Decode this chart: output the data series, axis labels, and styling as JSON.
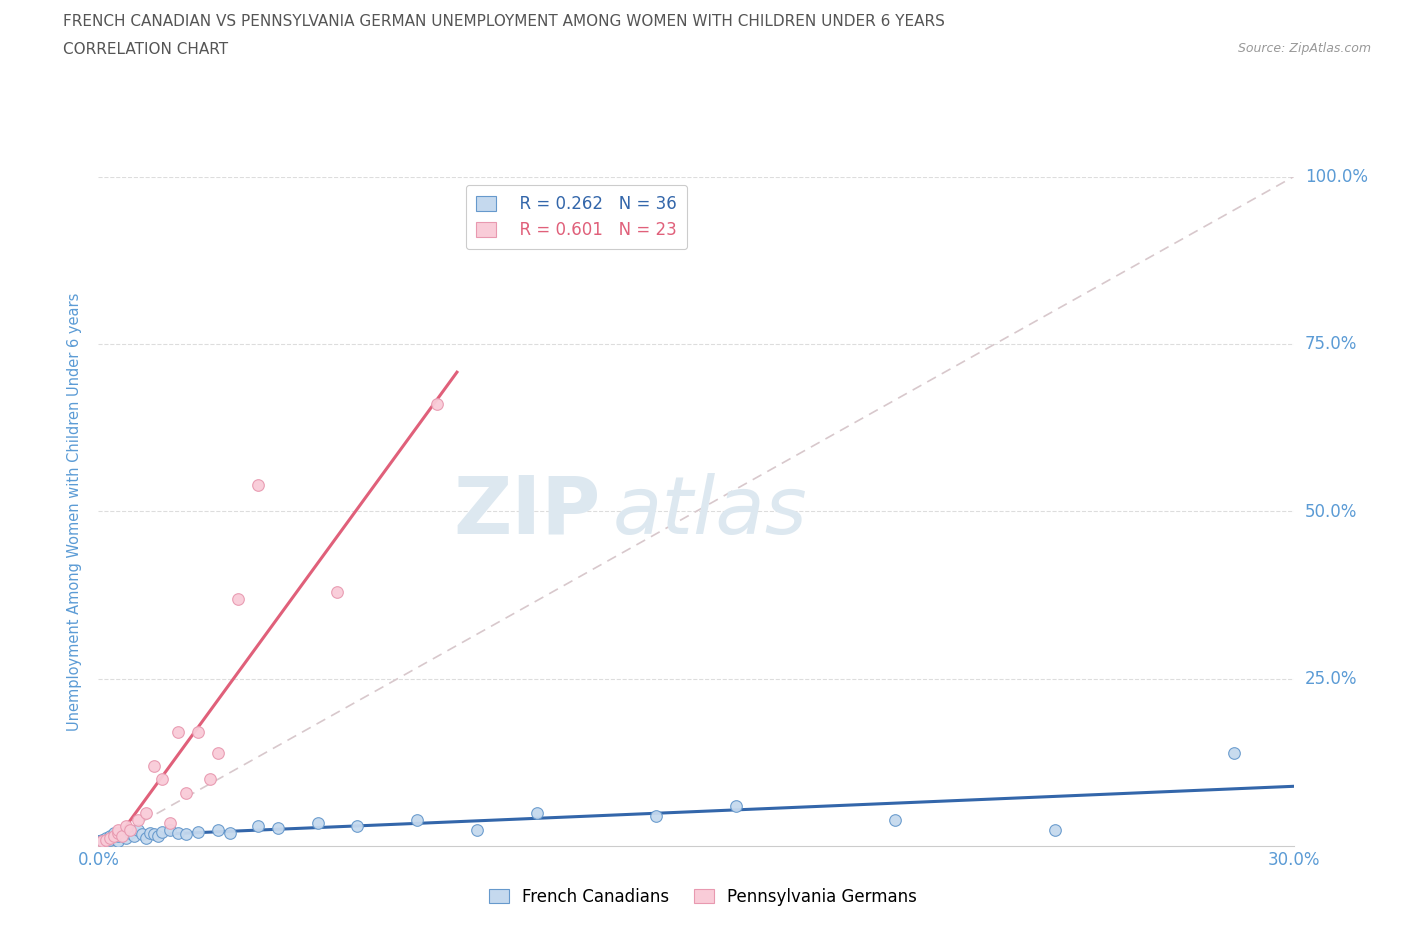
{
  "title": "FRENCH CANADIAN VS PENNSYLVANIA GERMAN UNEMPLOYMENT AMONG WOMEN WITH CHILDREN UNDER 6 YEARS",
  "subtitle": "CORRELATION CHART",
  "source": "Source: ZipAtlas.com",
  "ylabel_left": "Unemployment Among Women with Children Under 6 years",
  "legend_blue_r": "R = 0.262",
  "legend_blue_n": "N = 36",
  "legend_pink_r": "R = 0.601",
  "legend_pink_n": "N = 23",
  "legend_label_blue": "French Canadians",
  "legend_label_pink": "Pennsylvania Germans",
  "blue_scatter_color": "#c5d9ee",
  "blue_edge_color": "#6699cc",
  "blue_line_color": "#3366aa",
  "pink_scatter_color": "#f9ccd8",
  "pink_edge_color": "#e899b0",
  "pink_line_color": "#e0607a",
  "ref_line_color": "#d8c8cc",
  "grid_color": "#dddddd",
  "title_color": "#555555",
  "tick_color": "#5b9bd5",
  "watermark_color": "#dde8f0",
  "french_canadians_x": [
    0.001,
    0.002,
    0.003,
    0.003,
    0.004,
    0.005,
    0.005,
    0.006,
    0.007,
    0.008,
    0.009,
    0.01,
    0.011,
    0.012,
    0.013,
    0.014,
    0.015,
    0.016,
    0.018,
    0.02,
    0.022,
    0.025,
    0.03,
    0.033,
    0.04,
    0.045,
    0.055,
    0.065,
    0.08,
    0.095,
    0.11,
    0.14,
    0.16,
    0.2,
    0.24,
    0.285
  ],
  "french_canadians_y": [
    0.01,
    0.012,
    0.01,
    0.015,
    0.02,
    0.008,
    0.015,
    0.018,
    0.012,
    0.02,
    0.015,
    0.025,
    0.018,
    0.012,
    0.02,
    0.018,
    0.015,
    0.022,
    0.025,
    0.02,
    0.018,
    0.022,
    0.025,
    0.02,
    0.03,
    0.028,
    0.035,
    0.03,
    0.04,
    0.025,
    0.05,
    0.045,
    0.06,
    0.04,
    0.025,
    0.14
  ],
  "pennsylvania_x": [
    0.001,
    0.002,
    0.003,
    0.004,
    0.005,
    0.005,
    0.006,
    0.007,
    0.008,
    0.01,
    0.012,
    0.014,
    0.016,
    0.018,
    0.02,
    0.022,
    0.025,
    0.028,
    0.03,
    0.035,
    0.04,
    0.06,
    0.085
  ],
  "pennsylvania_y": [
    0.008,
    0.01,
    0.012,
    0.015,
    0.02,
    0.025,
    0.015,
    0.03,
    0.025,
    0.04,
    0.05,
    0.12,
    0.1,
    0.035,
    0.17,
    0.08,
    0.17,
    0.1,
    0.14,
    0.37,
    0.54,
    0.38,
    0.66
  ],
  "xlim": [
    0.0,
    0.3
  ],
  "ylim": [
    0.0,
    1.0
  ],
  "figsize": [
    14.06,
    9.3
  ],
  "dpi": 100
}
